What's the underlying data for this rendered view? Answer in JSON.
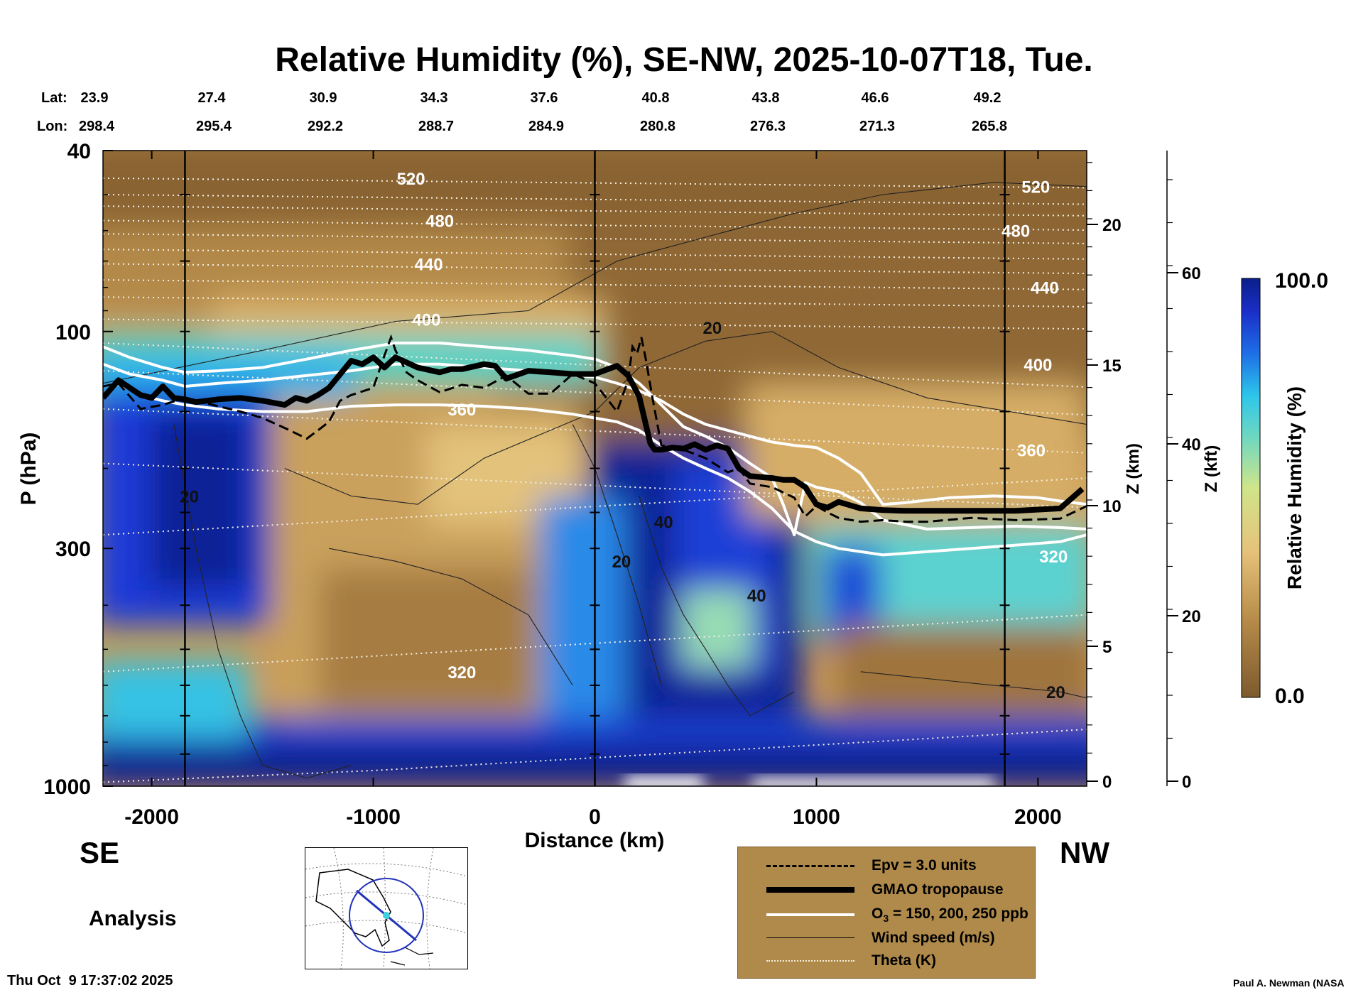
{
  "chart_data": {
    "type": "heatmap",
    "title": "Relative Humidity (%), SE-NW, 2025-10-07T18, Tue.",
    "xlabel": "Distance (km)",
    "ylabel": "P (hPa)",
    "xlim": [
      -2220,
      2220
    ],
    "ylim": [
      1000,
      40
    ],
    "y_scale": "log",
    "x_ticks": [
      -2000,
      -1000,
      0,
      1000,
      2000
    ],
    "y_ticks": [
      40,
      100,
      300,
      1000
    ],
    "z_km_axis": {
      "label": "Z (km)",
      "ticks": [
        0,
        5,
        10,
        15,
        20
      ]
    },
    "z_kft_axis": {
      "label": "Z (kft)",
      "ticks": [
        0,
        20,
        40,
        60
      ]
    },
    "lat_label": "Lat:",
    "lon_label": "Lon:",
    "lat": [
      "23.9",
      "27.4",
      "30.9",
      "34.3",
      "37.6",
      "40.8",
      "43.8",
      "46.6",
      "49.2"
    ],
    "lon": [
      "298.4",
      "295.4",
      "292.2",
      "288.7",
      "284.9",
      "280.8",
      "276.3",
      "271.3",
      "265.8"
    ],
    "vertical_lines_km": [
      -1850,
      0,
      1850
    ],
    "colorbar": {
      "label": "Relative Humidity (%)",
      "min": "0.0",
      "max": "100.0"
    },
    "theta_labels": [
      {
        "value": "520",
        "x": -830,
        "p": 46
      },
      {
        "value": "480",
        "x": -700,
        "p": 57
      },
      {
        "value": "440",
        "x": -750,
        "p": 71
      },
      {
        "value": "400",
        "x": -760,
        "p": 94
      },
      {
        "value": "360",
        "x": -600,
        "p": 148
      },
      {
        "value": "320",
        "x": -600,
        "p": 560
      },
      {
        "value": "520",
        "x": 1990,
        "p": 48
      },
      {
        "value": "480",
        "x": 1900,
        "p": 60
      },
      {
        "value": "440",
        "x": 2030,
        "p": 80
      },
      {
        "value": "400",
        "x": 2000,
        "p": 118
      },
      {
        "value": "360",
        "x": 1970,
        "p": 182
      },
      {
        "value": "320",
        "x": 2070,
        "p": 312
      }
    ],
    "wind_labels": [
      {
        "value": "20",
        "x": 530,
        "p": 98
      },
      {
        "value": "20",
        "x": -1830,
        "p": 230
      },
      {
        "value": "40",
        "x": 310,
        "p": 262
      },
      {
        "value": "20",
        "x": 120,
        "p": 320
      },
      {
        "value": "40",
        "x": 730,
        "p": 380
      },
      {
        "value": "20",
        "x": 2080,
        "p": 620
      }
    ],
    "tropopause": {
      "x": [
        -2220,
        -2150,
        -2050,
        -2000,
        -1950,
        -1900,
        -1850,
        -1800,
        -1700,
        -1600,
        -1500,
        -1400,
        -1350,
        -1300,
        -1250,
        -1200,
        -1100,
        -1050,
        -1000,
        -950,
        -900,
        -800,
        -700,
        -650,
        -600,
        -500,
        -450,
        -400,
        -300,
        -200,
        -100,
        0,
        100,
        150,
        200,
        230,
        250,
        270,
        300,
        350,
        400,
        450,
        500,
        550,
        600,
        650,
        700,
        800,
        850,
        900,
        950,
        1000,
        1050,
        1100,
        1200,
        1300,
        1400,
        1500,
        1700,
        1900,
        2100,
        2200
      ],
      "p": [
        140,
        128,
        138,
        140,
        132,
        140,
        141,
        143,
        141,
        140,
        142,
        145,
        140,
        142,
        138,
        133,
        116,
        118,
        114,
        120,
        114,
        120,
        123,
        121,
        121,
        118,
        119,
        127,
        122,
        123,
        124,
        124,
        119,
        125,
        139,
        160,
        176,
        182,
        182,
        180,
        181,
        177,
        182,
        178,
        181,
        200,
        208,
        210,
        212,
        212,
        220,
        240,
        244,
        237,
        245,
        247,
        248,
        248,
        248,
        248,
        245,
        222
      ]
    },
    "epv": {
      "x": [
        -2220,
        -2150,
        -2050,
        -1950,
        -1850,
        -1700,
        -1600,
        -1500,
        -1400,
        -1300,
        -1250,
        -1200,
        -1150,
        -1100,
        -1000,
        -950,
        -920,
        -900,
        -850,
        -800,
        -700,
        -600,
        -500,
        -400,
        -300,
        -200,
        -100,
        0,
        100,
        150,
        170,
        190,
        210,
        230,
        260,
        300,
        400,
        500,
        600,
        650,
        700,
        800,
        900,
        950,
        1000,
        1050,
        1100,
        1200,
        1300,
        1400,
        1500,
        1700,
        1900,
        2100,
        2220
      ],
      "p": [
        132,
        130,
        148,
        145,
        140,
        146,
        150,
        155,
        163,
        172,
        165,
        158,
        142,
        138,
        133,
        113,
        103,
        110,
        123,
        128,
        136,
        131,
        133,
        125,
        137,
        137,
        124,
        130,
        150,
        128,
        108,
        112,
        103,
        115,
        140,
        178,
        182,
        190,
        204,
        200,
        216,
        220,
        232,
        255,
        242,
        250,
        257,
        262,
        260,
        262,
        262,
        257,
        260,
        258,
        242
      ]
    },
    "ozone": {
      "levels_ppb": [
        "150",
        "200",
        "250"
      ],
      "contours": [
        {
          "x": [
            -2220,
            -2100,
            -1950,
            -1850,
            -1700,
            -1500,
            -1300,
            -1100,
            -900,
            -700,
            -500,
            -300,
            -100,
            0,
            100,
            200,
            300,
            400,
            500,
            600,
            700,
            800,
            900,
            1000,
            1100,
            1200,
            1300,
            1400,
            1600,
            1800,
            2000,
            2100,
            2220
          ],
          "p": [
            118,
            124,
            128,
            132,
            130,
            128,
            125,
            122,
            118,
            118,
            120,
            122,
            125,
            126,
            130,
            135,
            142,
            152,
            160,
            165,
            170,
            175,
            178,
            180,
            190,
            205,
            240,
            238,
            232,
            230,
            232,
            236,
            240
          ]
        },
        {
          "x": [
            -2220,
            -2100,
            -1950,
            -1850,
            -1700,
            -1500,
            -1300,
            -1100,
            -900,
            -700,
            -500,
            -300,
            -100,
            0,
            100,
            200,
            300,
            400,
            500,
            600,
            700,
            800,
            850,
            900,
            950,
            1000,
            1100,
            1200,
            1300,
            1500,
            1700,
            1900,
            2100,
            2220
          ],
          "p": [
            108,
            114,
            120,
            123,
            122,
            120,
            115,
            110,
            106,
            106,
            108,
            110,
            113,
            115,
            120,
            130,
            145,
            162,
            170,
            180,
            195,
            210,
            240,
            280,
            215,
            220,
            225,
            238,
            260,
            272,
            270,
            268,
            270,
            272
          ]
        },
        {
          "x": [
            -2220,
            -2150,
            -2050,
            -1950,
            -1850,
            -1700,
            -1500,
            -1300,
            -1200,
            -1100,
            -900,
            -700,
            -500,
            -300,
            -100,
            0,
            100,
            200,
            300,
            400,
            500,
            600,
            700,
            800,
            900,
            1000,
            1100,
            1300,
            1500,
            1700,
            1900,
            2100,
            2220
          ],
          "p": [
            140,
            130,
            138,
            142,
            145,
            148,
            150,
            150,
            148,
            146,
            145,
            145,
            146,
            148,
            152,
            155,
            158,
            165,
            178,
            190,
            200,
            210,
            225,
            245,
            275,
            290,
            300,
            310,
            305,
            300,
            295,
            290,
            280
          ]
        }
      ]
    }
  },
  "legend": {
    "items": [
      {
        "style": "dashed",
        "label": "Epv = 3.0 units"
      },
      {
        "style": "thick",
        "label": "GMAO tropopause"
      },
      {
        "style": "white",
        "label_main": "O",
        "label_sub": "3",
        "label_rest": " = 150, 200, 250 ppb"
      },
      {
        "style": "thin",
        "label": "Wind speed (m/s)"
      },
      {
        "style": "dotted",
        "label": "Theta (K)"
      }
    ]
  },
  "labels": {
    "se": "SE",
    "nw": "NW",
    "analysis": "Analysis",
    "timestamp": "Thu Oct  9 17:37:02 2025",
    "credit": "Paul A. Newman (NASA"
  },
  "colors": {
    "brown_dark": "#7d5a2e",
    "tan": "#d9b36a",
    "cyan": "#3fd0e0",
    "blue": "#1a3fd6",
    "navy": "#0a1f8a"
  }
}
